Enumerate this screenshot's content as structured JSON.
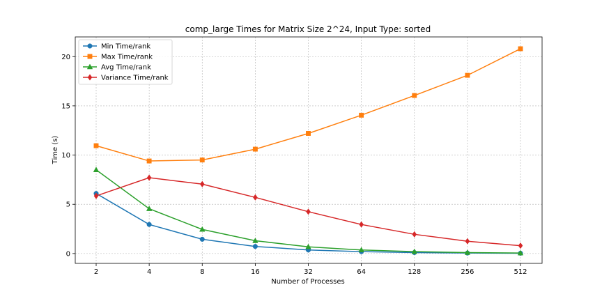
{
  "chart_data": {
    "type": "line",
    "title": "comp_large Times for Matrix Size 2^24, Input Type: sorted",
    "xlabel": "Number of Processes",
    "ylabel": "Time (s)",
    "x_scale": "log2",
    "categories": [
      "2",
      "4",
      "8",
      "16",
      "32",
      "64",
      "128",
      "256",
      "512"
    ],
    "x": [
      2,
      4,
      8,
      16,
      32,
      64,
      128,
      256,
      512
    ],
    "ylim": [
      -1,
      22
    ],
    "yticks": [
      0,
      5,
      10,
      15,
      20
    ],
    "grid": true,
    "legend_position": "top-left",
    "series": [
      {
        "name": "Min Time/rank",
        "color": "#1f77b4",
        "marker": "circle",
        "values": [
          6.1,
          2.95,
          1.45,
          0.72,
          0.36,
          0.19,
          0.1,
          0.05,
          0.03
        ]
      },
      {
        "name": "Max Time/rank",
        "color": "#ff7f0e",
        "marker": "square",
        "values": [
          10.95,
          9.4,
          9.5,
          10.6,
          12.2,
          14.05,
          16.05,
          18.1,
          20.8
        ]
      },
      {
        "name": "Avg Time/rank",
        "color": "#2ca02c",
        "marker": "triangle",
        "values": [
          8.5,
          4.55,
          2.45,
          1.3,
          0.68,
          0.36,
          0.19,
          0.1,
          0.05
        ]
      },
      {
        "name": "Variance Time/rank",
        "color": "#d62728",
        "marker": "diamond",
        "values": [
          5.85,
          7.7,
          7.05,
          5.7,
          4.25,
          2.95,
          1.95,
          1.25,
          0.8
        ]
      }
    ]
  }
}
